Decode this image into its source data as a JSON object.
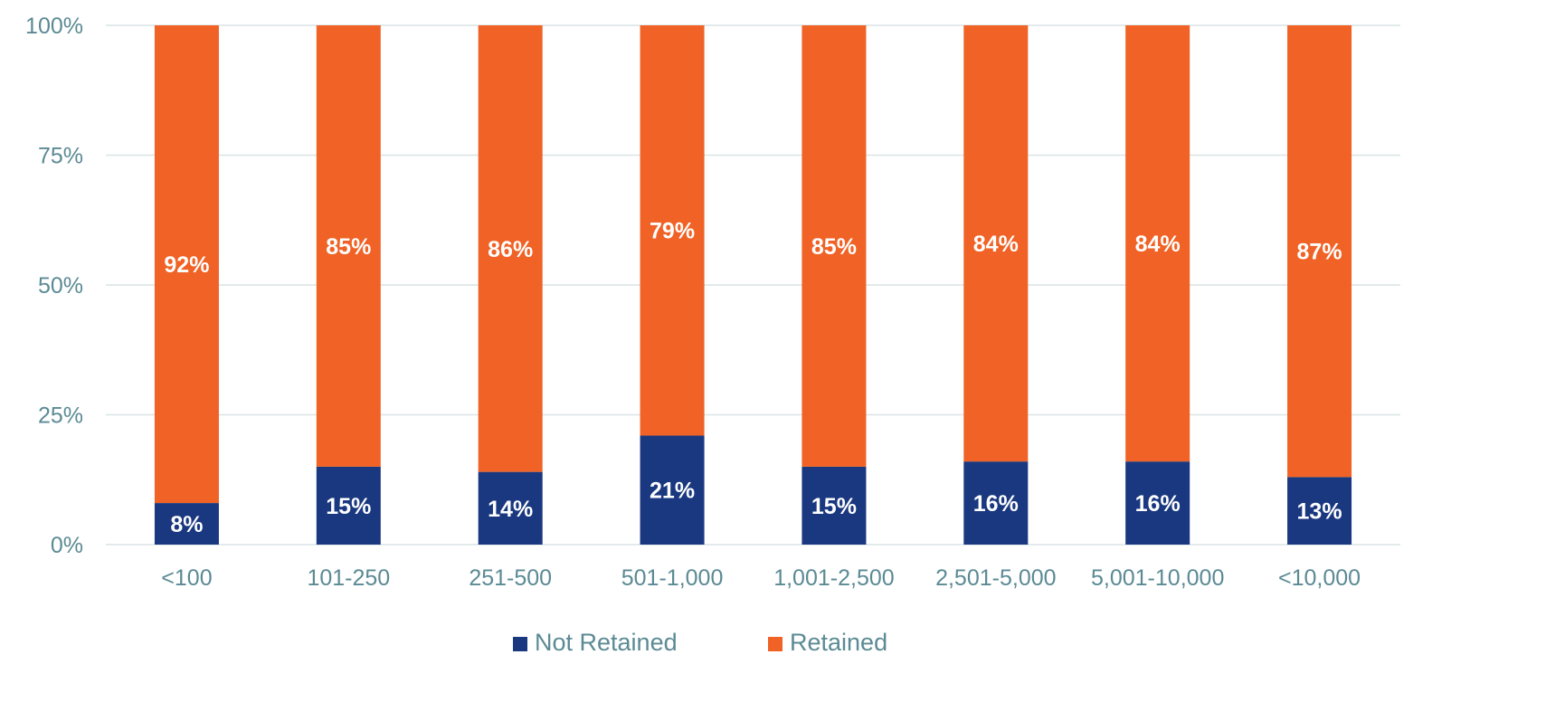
{
  "chart_data": {
    "type": "bar",
    "stacked": true,
    "categories": [
      "<100",
      "101-250",
      "251-500",
      "501-1,000",
      "1,001-2,500",
      "2,501-5,000",
      "5,001-10,000",
      "<10,000"
    ],
    "series": [
      {
        "name": "Not Retained",
        "color": "#1a3880",
        "values": [
          8,
          15,
          14,
          21,
          15,
          16,
          16,
          13
        ],
        "labels": [
          "8%",
          "15%",
          "14%",
          "21%",
          "15%",
          "16%",
          "16%",
          "13%"
        ]
      },
      {
        "name": "Retained",
        "color": "#f06225",
        "values": [
          92,
          85,
          86,
          79,
          85,
          84,
          84,
          87
        ],
        "labels": [
          "92%",
          "85%",
          "86%",
          "79%",
          "85%",
          "84%",
          "84%",
          "87%"
        ]
      }
    ],
    "ylim": [
      0,
      100
    ],
    "yticks": [
      0,
      25,
      50,
      75,
      100
    ],
    "ytick_labels": [
      "0%",
      "25%",
      "50%",
      "75%",
      "100%"
    ],
    "grid": true,
    "legend": "bottom",
    "colors": {
      "axis_text": "#5b8a94",
      "grid": "#d9e4e6",
      "label_text": "#ffffff"
    }
  }
}
